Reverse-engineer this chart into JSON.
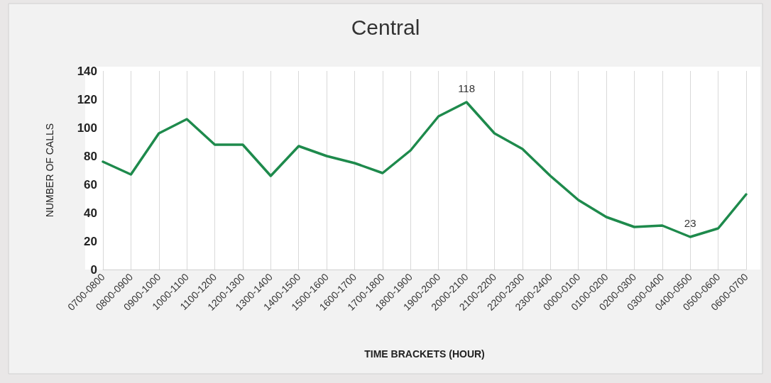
{
  "chart_data": {
    "type": "line",
    "title": "Central",
    "xlabel": "TIME BRACKETS (HOUR)",
    "ylabel": "NUMBER OF CALLS",
    "categories": [
      "0700-0800",
      "0800-0900",
      "0900-1000",
      "1000-1100",
      "1100-1200",
      "1200-1300",
      "1300-1400",
      "1400-1500",
      "1500-1600",
      "1600-1700",
      "1700-1800",
      "1800-1900",
      "1900-2000",
      "2000-2100",
      "2100-2200",
      "2200-2300",
      "2300-2400",
      "0000-0100",
      "0100-0200",
      "0200-0300",
      "0300-0400",
      "0400-0500",
      "0500-0600",
      "0600-0700"
    ],
    "series": [
      {
        "color": "#1e8a4c",
        "values": [
          76,
          67,
          96,
          106,
          88,
          88,
          66,
          87,
          80,
          75,
          68,
          84,
          108,
          118,
          96,
          85,
          66,
          49,
          37,
          30,
          31,
          23,
          29,
          53
        ],
        "value_labels": [
          null,
          null,
          null,
          null,
          null,
          null,
          null,
          null,
          null,
          null,
          null,
          null,
          null,
          "118",
          null,
          null,
          null,
          null,
          null,
          null,
          null,
          "23",
          null,
          null
        ]
      }
    ],
    "ylim": [
      0,
      140
    ],
    "yticks": [
      0,
      20,
      40,
      60,
      80,
      100,
      120,
      140
    ],
    "grid": "x",
    "marker": "none",
    "line_style": "solid"
  }
}
